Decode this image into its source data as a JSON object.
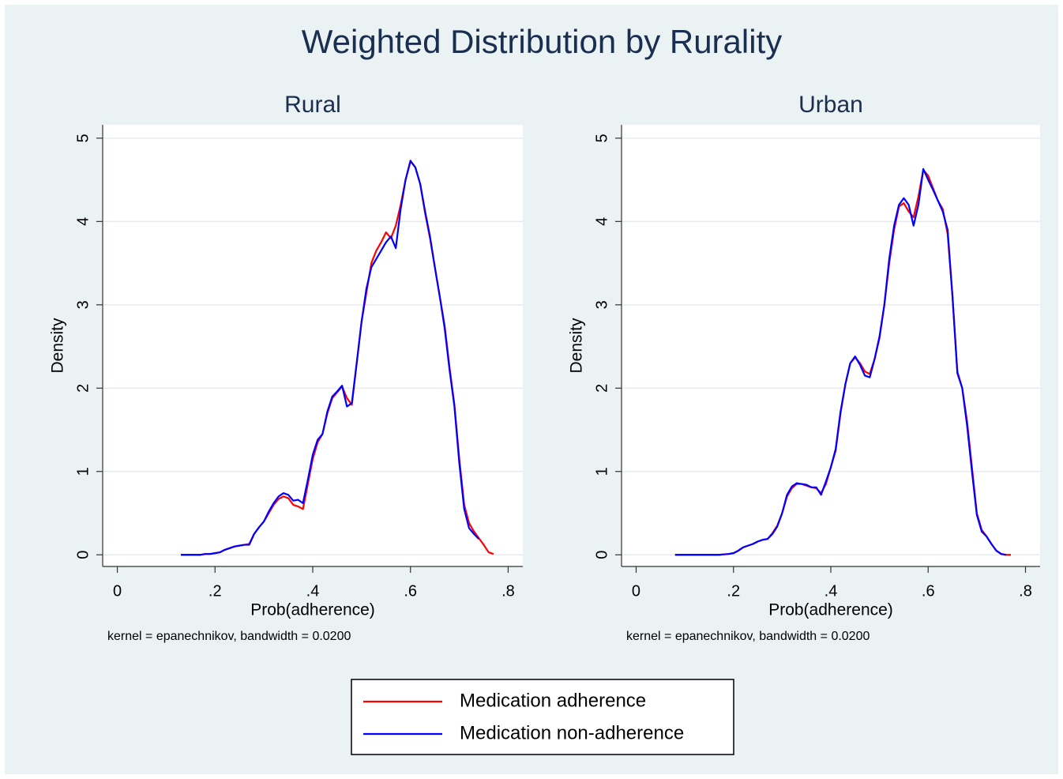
{
  "title": "Weighted Distribution by Rurality",
  "chart_data": [
    {
      "type": "line",
      "title": "Rural",
      "xlabel": "Prob(adherence)",
      "ylabel": "Density",
      "note": "kernel = epanechnikov, bandwidth = 0.0200",
      "x": [
        0.13,
        0.14,
        0.15,
        0.16,
        0.17,
        0.18,
        0.19,
        0.2,
        0.21,
        0.22,
        0.23,
        0.24,
        0.25,
        0.26,
        0.27,
        0.28,
        0.29,
        0.3,
        0.31,
        0.32,
        0.33,
        0.34,
        0.35,
        0.36,
        0.37,
        0.38,
        0.39,
        0.4,
        0.41,
        0.42,
        0.43,
        0.44,
        0.45,
        0.46,
        0.47,
        0.48,
        0.49,
        0.5,
        0.51,
        0.52,
        0.53,
        0.54,
        0.55,
        0.56,
        0.57,
        0.58,
        0.59,
        0.6,
        0.61,
        0.62,
        0.63,
        0.64,
        0.65,
        0.66,
        0.67,
        0.68,
        0.69,
        0.7,
        0.71,
        0.72,
        0.73,
        0.74,
        0.75,
        0.76,
        0.77
      ],
      "series": [
        {
          "name": "Medication adherence",
          "color": "#ff0000",
          "values": [
            0,
            0,
            0,
            0,
            0,
            0.01,
            0.01,
            0.02,
            0.03,
            0.06,
            0.08,
            0.1,
            0.11,
            0.12,
            0.13,
            0.25,
            0.33,
            0.4,
            0.5,
            0.6,
            0.67,
            0.7,
            0.68,
            0.6,
            0.58,
            0.55,
            0.85,
            1.15,
            1.35,
            1.45,
            1.7,
            1.88,
            1.95,
            2.02,
            1.88,
            1.8,
            2.3,
            2.8,
            3.15,
            3.5,
            3.65,
            3.75,
            3.87,
            3.8,
            3.95,
            4.2,
            4.5,
            4.72,
            4.65,
            4.45,
            4.1,
            3.8,
            3.45,
            3.1,
            2.75,
            2.25,
            1.8,
            1.15,
            0.6,
            0.38,
            0.28,
            0.2,
            0.12,
            0.03,
            0.01
          ]
        },
        {
          "name": "Medication non-adherence",
          "color": "#0000ff",
          "values": [
            0,
            0,
            0,
            0,
            0,
            0.01,
            0.01,
            0.02,
            0.03,
            0.06,
            0.08,
            0.1,
            0.11,
            0.12,
            0.12,
            0.25,
            0.33,
            0.4,
            0.52,
            0.62,
            0.7,
            0.74,
            0.72,
            0.65,
            0.66,
            0.62,
            0.9,
            1.2,
            1.38,
            1.45,
            1.72,
            1.9,
            1.96,
            2.03,
            1.78,
            1.82,
            2.3,
            2.8,
            3.2,
            3.45,
            3.55,
            3.65,
            3.75,
            3.82,
            3.68,
            4.15,
            4.5,
            4.73,
            4.65,
            4.45,
            4.12,
            3.82,
            3.45,
            3.1,
            2.72,
            2.22,
            1.78,
            1.1,
            0.55,
            0.32,
            0.25,
            0.19,
            null,
            null,
            null
          ]
        }
      ],
      "xlim": [
        -0.03,
        0.83
      ],
      "ylim": [
        -0.14,
        5.16
      ],
      "xticks": [
        0,
        {
          "value": 0.2,
          "label": ".2"
        },
        {
          "value": 0.4,
          "label": ".4"
        },
        {
          "value": 0.6,
          "label": ".6"
        },
        {
          "value": 0.8,
          "label": ".8"
        }
      ],
      "yticks": [
        0,
        1,
        2,
        3,
        4,
        5
      ],
      "grid": true
    },
    {
      "type": "line",
      "title": "Urban",
      "xlabel": "Prob(adherence)",
      "ylabel": "Density",
      "note": "kernel = epanechnikov, bandwidth = 0.0200",
      "x": [
        0.08,
        0.09,
        0.1,
        0.11,
        0.12,
        0.13,
        0.14,
        0.15,
        0.16,
        0.17,
        0.18,
        0.19,
        0.2,
        0.21,
        0.22,
        0.23,
        0.24,
        0.25,
        0.26,
        0.27,
        0.28,
        0.29,
        0.3,
        0.31,
        0.32,
        0.33,
        0.34,
        0.35,
        0.36,
        0.37,
        0.38,
        0.39,
        0.4,
        0.41,
        0.42,
        0.43,
        0.44,
        0.45,
        0.46,
        0.47,
        0.48,
        0.49,
        0.5,
        0.51,
        0.52,
        0.53,
        0.54,
        0.55,
        0.56,
        0.57,
        0.58,
        0.59,
        0.6,
        0.61,
        0.62,
        0.63,
        0.64,
        0.65,
        0.66,
        0.67,
        0.68,
        0.69,
        0.7,
        0.71,
        0.72,
        0.73,
        0.74,
        0.75,
        0.76,
        0.77
      ],
      "series": [
        {
          "name": "Medication adherence",
          "color": "#ff0000",
          "values": [
            0,
            0,
            0,
            0,
            0,
            0,
            0,
            0,
            0,
            0,
            0.005,
            0.01,
            0.02,
            0.05,
            0.09,
            0.11,
            0.13,
            0.16,
            0.18,
            0.19,
            0.26,
            0.35,
            0.5,
            0.7,
            0.8,
            0.85,
            0.85,
            0.83,
            0.81,
            0.8,
            0.74,
            0.85,
            1.05,
            1.25,
            1.7,
            2.05,
            2.3,
            2.37,
            2.3,
            2.2,
            2.17,
            2.35,
            2.6,
            3.0,
            3.5,
            3.9,
            4.18,
            4.22,
            4.12,
            4.05,
            4.3,
            4.62,
            4.55,
            4.4,
            4.25,
            4.15,
            3.85,
            3.1,
            2.2,
            2.0,
            1.6,
            1.05,
            0.5,
            0.3,
            0.22,
            0.13,
            0.05,
            0.01,
            0,
            0
          ]
        },
        {
          "name": "Medication non-adherence",
          "color": "#0000ff",
          "values": [
            0,
            0,
            0,
            0,
            0,
            0,
            0,
            0,
            0,
            0,
            0.005,
            0.01,
            0.02,
            0.05,
            0.09,
            0.11,
            0.13,
            0.16,
            0.18,
            0.19,
            0.25,
            0.34,
            0.5,
            0.72,
            0.82,
            0.86,
            0.85,
            0.84,
            0.81,
            0.81,
            0.72,
            0.88,
            1.05,
            1.27,
            1.72,
            2.05,
            2.3,
            2.38,
            2.28,
            2.15,
            2.13,
            2.35,
            2.62,
            3.0,
            3.55,
            3.95,
            4.2,
            4.28,
            4.2,
            3.95,
            4.2,
            4.63,
            4.5,
            4.38,
            4.25,
            4.12,
            3.9,
            3.1,
            2.18,
            2.0,
            1.55,
            1.0,
            0.48,
            0.28,
            0.22,
            0.13,
            0.05,
            0.01,
            0,
            null
          ]
        }
      ],
      "xlim": [
        -0.03,
        0.83
      ],
      "ylim": [
        -0.14,
        5.16
      ],
      "xticks": [
        0,
        {
          "value": 0.2,
          "label": ".2"
        },
        {
          "value": 0.4,
          "label": ".4"
        },
        {
          "value": 0.6,
          "label": ".6"
        },
        {
          "value": 0.8,
          "label": ".8"
        }
      ],
      "yticks": [
        0,
        1,
        2,
        3,
        4,
        5
      ],
      "grid": true
    }
  ]
}
